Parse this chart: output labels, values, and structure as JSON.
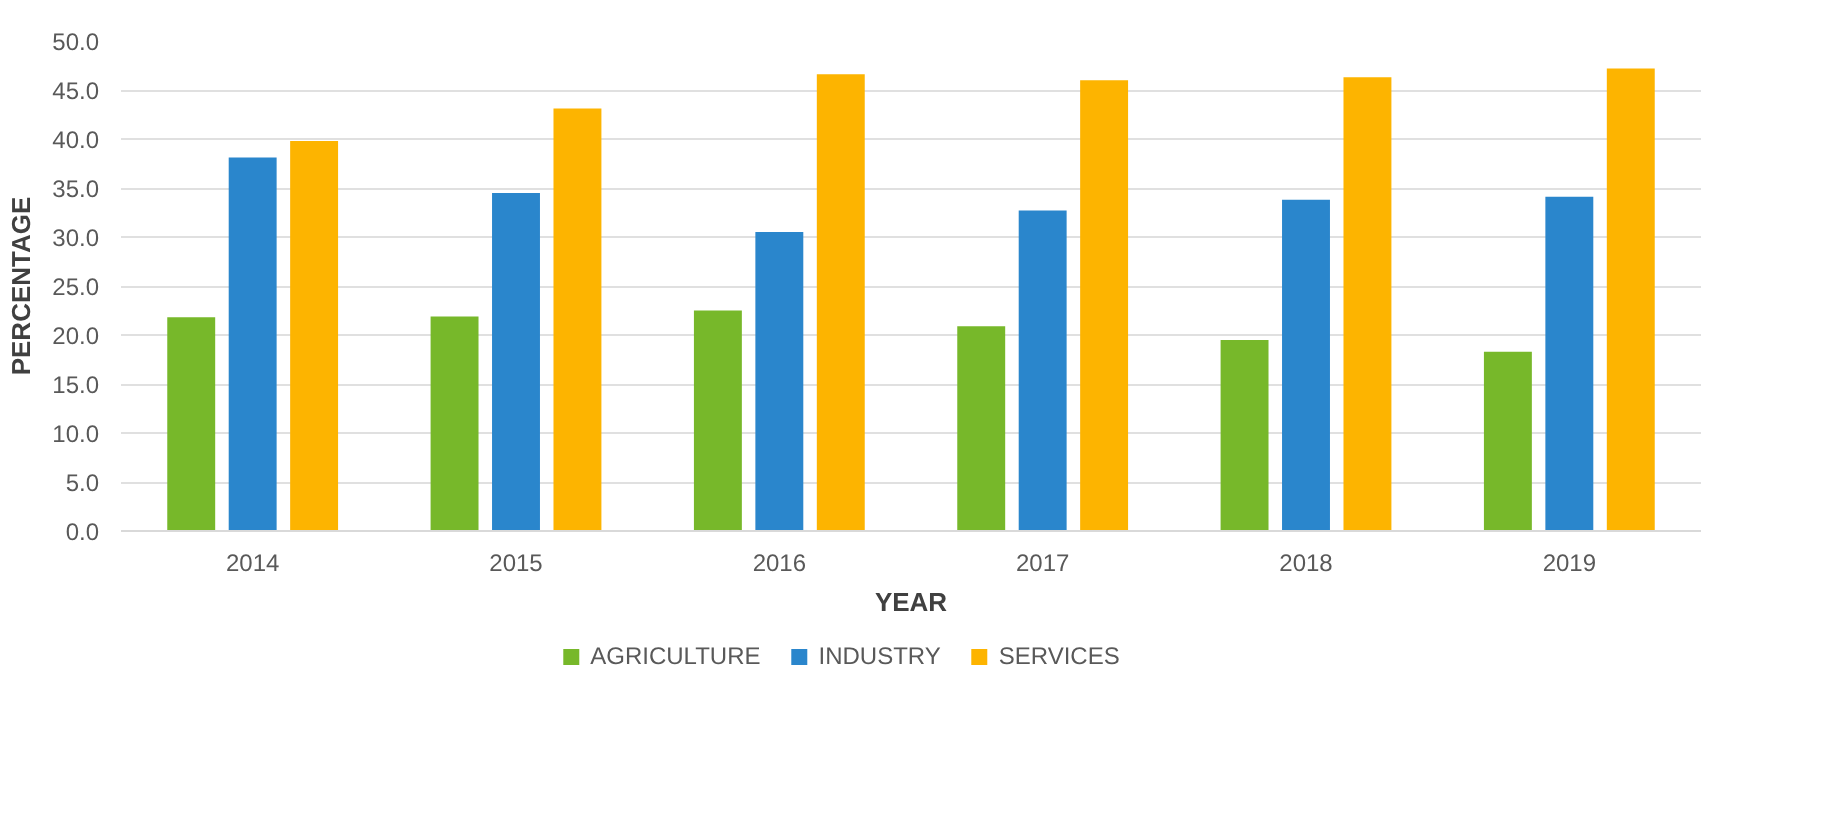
{
  "chart_data": {
    "type": "bar",
    "xlabel": "YEAR",
    "ylabel": "PERCENTAGE",
    "categories": [
      "2014",
      "2015",
      "2016",
      "2017",
      "2018",
      "2019"
    ],
    "series": [
      {
        "name": "AGRICULTURE",
        "color": "#77b82a",
        "values": [
          21.8,
          21.9,
          22.5,
          20.9,
          19.5,
          18.3
        ]
      },
      {
        "name": "INDUSTRY",
        "color": "#2a86cc",
        "values": [
          38.1,
          34.5,
          30.5,
          32.7,
          33.8,
          34.1
        ]
      },
      {
        "name": "SERVICES",
        "color": "#fdb400",
        "values": [
          39.8,
          43.1,
          46.6,
          46.0,
          46.3,
          47.2
        ]
      }
    ],
    "ylim": [
      0,
      50
    ],
    "yticks": [
      {
        "value": 0,
        "label": "0.0"
      },
      {
        "value": 5,
        "label": "5.0"
      },
      {
        "value": 10,
        "label": "10.0"
      },
      {
        "value": 15,
        "label": "15.0"
      },
      {
        "value": 20,
        "label": "20.0"
      },
      {
        "value": 25,
        "label": "25.0"
      },
      {
        "value": 30,
        "label": "30.0"
      },
      {
        "value": 35,
        "label": "35.0"
      },
      {
        "value": 40,
        "label": "40.0"
      },
      {
        "value": 45,
        "label": "45.0"
      },
      {
        "value": 50,
        "label": "50.0"
      }
    ],
    "grid": "y",
    "legend": "bottom"
  }
}
